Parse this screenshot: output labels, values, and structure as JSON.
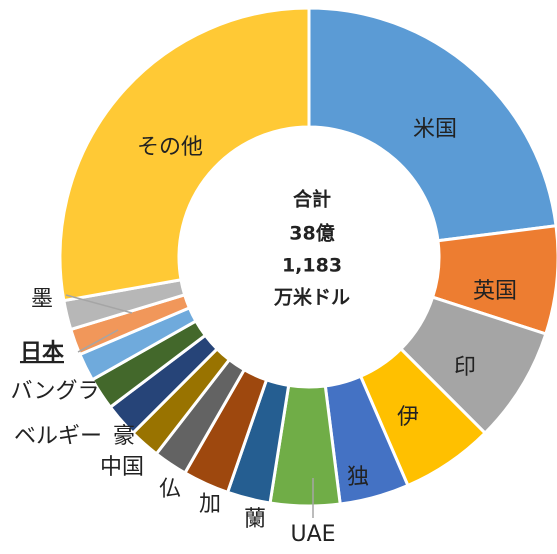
{
  "chart_data": {
    "type": "donut",
    "center_label": [
      "合計",
      "38億",
      "1,183",
      "万米ドル"
    ],
    "categories": [
      "米国",
      "英国",
      "印",
      "伊",
      "独",
      "UAE",
      "蘭",
      "加",
      "仏",
      "中国",
      "豪",
      "ベルギー",
      "バングラ",
      "日本",
      "墨",
      "その他"
    ],
    "values": [
      23,
      7,
      7.5,
      6,
      4.5,
      4.5,
      2.8,
      3,
      2.2,
      2,
      2.2,
      2.1,
      1.8,
      1.7,
      1.9,
      27.8
    ],
    "colors": [
      "#5b9bd5",
      "#ed7d31",
      "#a5a5a5",
      "#ffc000",
      "#4472c4",
      "#70ad47",
      "#255e91",
      "#9e480e",
      "#636363",
      "#997300",
      "#264478",
      "#43682b",
      "#6faadc",
      "#f1975a",
      "#b7b7b7",
      "#ffc935"
    ],
    "highlight": "日本"
  }
}
